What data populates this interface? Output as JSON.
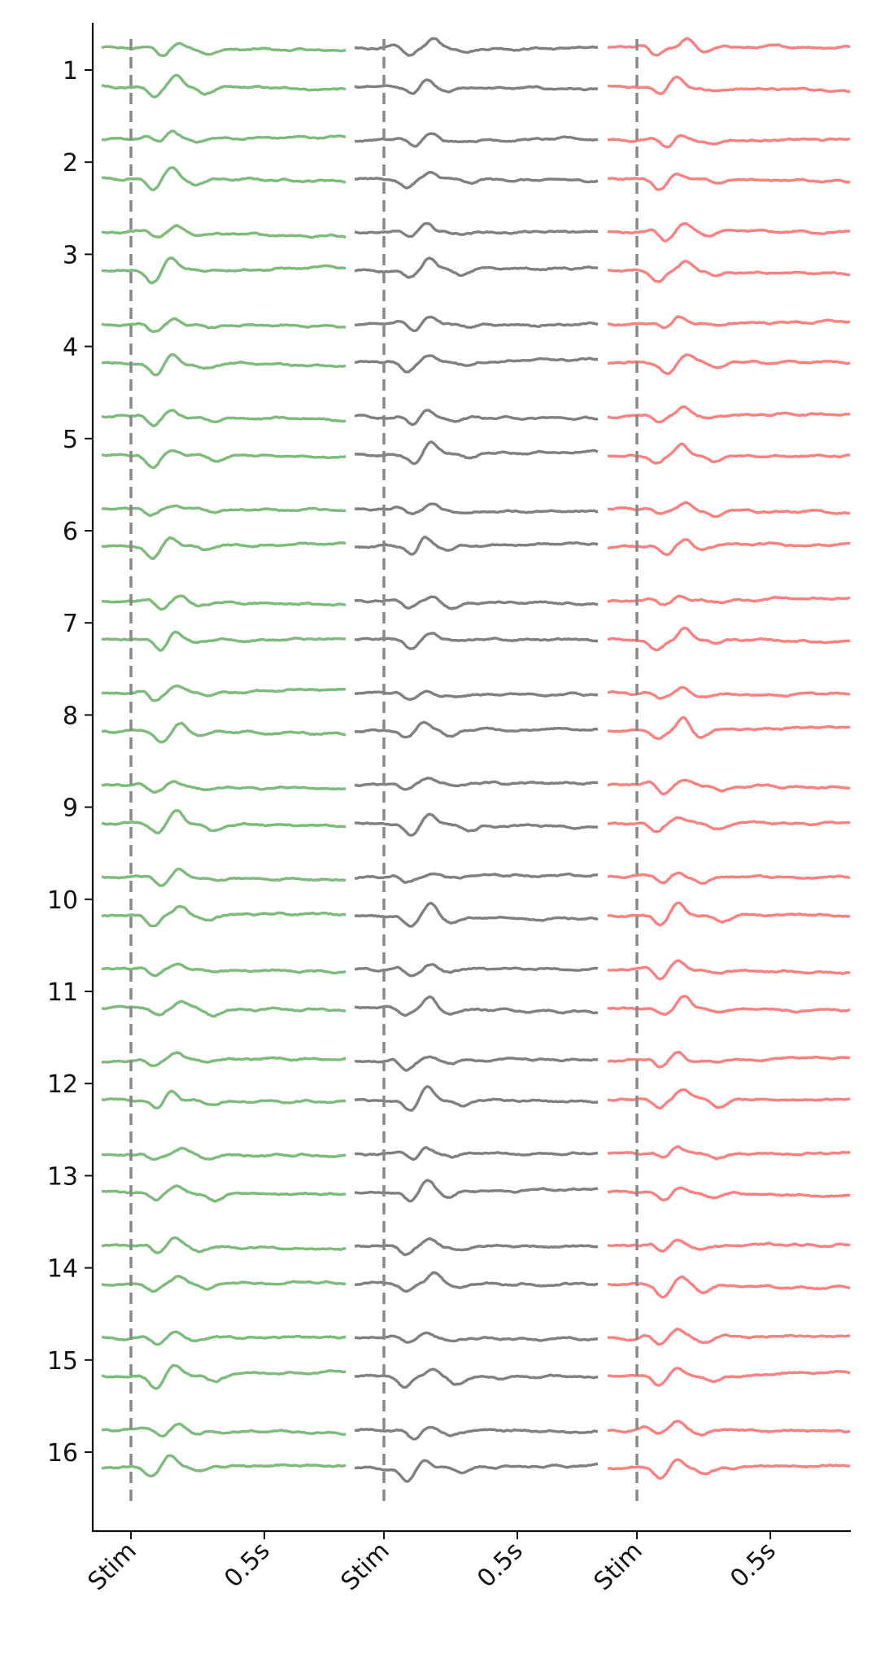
{
  "chart_data": {
    "type": "line",
    "title": "",
    "xlabel": "",
    "ylabel": "",
    "y_tick_labels": [
      "1",
      "2",
      "3",
      "4",
      "5",
      "6",
      "7",
      "8",
      "9",
      "10",
      "11",
      "12",
      "13",
      "14",
      "15",
      "16"
    ],
    "x_tick_labels": [
      "Stim",
      "0.5s",
      "Stim",
      "0.5s",
      "Stim",
      "0.5s"
    ],
    "grid": false,
    "legend": "none",
    "stim_marker": "dashed vertical line at stimulus onset",
    "trace_window_s": [
      -0.1,
      0.8
    ],
    "panels": [
      {
        "color": "#7dbb7a",
        "traces_per_row": 2
      },
      {
        "color": "#808080",
        "traces_per_row": 2
      },
      {
        "color": "#fb8080",
        "traces_per_row": 2
      }
    ],
    "stim_line_color": "#888888"
  }
}
